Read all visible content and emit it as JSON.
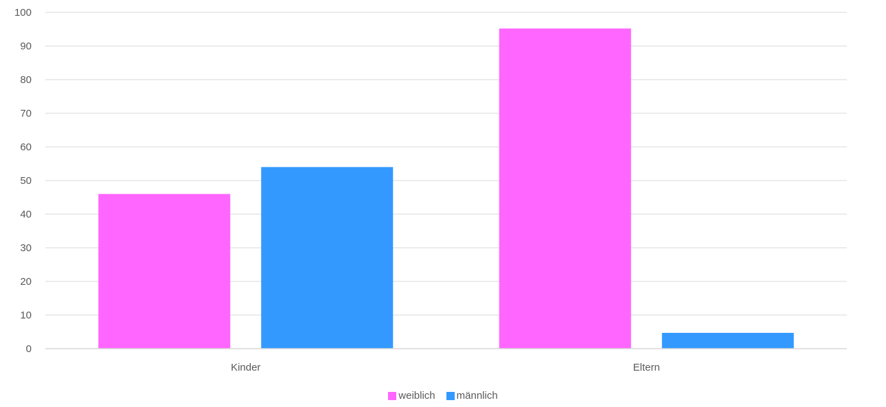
{
  "chart_data": {
    "type": "bar",
    "title": "",
    "xlabel": "",
    "ylabel": "",
    "categories": [
      "Kinder",
      "Eltern"
    ],
    "series": [
      {
        "name": "weiblich",
        "color": "#FF66FF",
        "values": [
          46,
          95.2
        ]
      },
      {
        "name": "männlich",
        "color": "#3399FF",
        "values": [
          54,
          4.7
        ]
      }
    ],
    "ylim": [
      0,
      100
    ],
    "yticks": [
      "0",
      "10",
      "20",
      "30",
      "40",
      "50",
      "60",
      "70",
      "80",
      "90",
      "100"
    ],
    "grid": true,
    "legend_position": "bottom"
  }
}
